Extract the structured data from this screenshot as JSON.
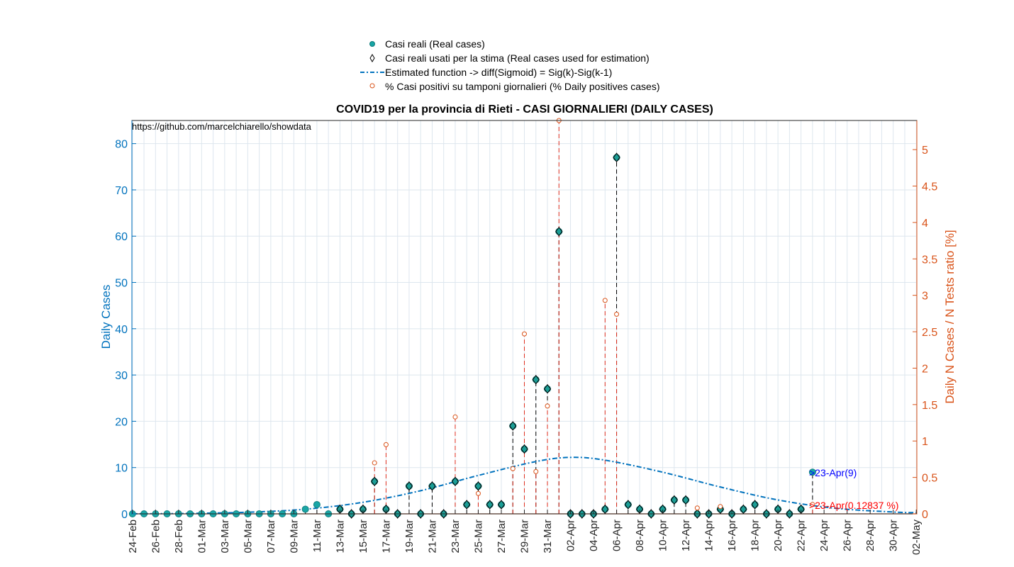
{
  "chart_data": {
    "type": "scatter",
    "title": "COVID19 per la provincia di Rieti - CASI GIORNALIERI (DAILY CASES)",
    "watermark": "https://github.com/marcelchiarello/showdata",
    "ylabel_left": "Daily Cases",
    "ylabel_right": "Daily N Cases / N Tests ratio [%]",
    "ylim_left": [
      0,
      85
    ],
    "ylim_right": [
      0,
      5.4
    ],
    "yticks_left": [
      "0",
      "10",
      "20",
      "30",
      "40",
      "50",
      "60",
      "70",
      "80"
    ],
    "yticks_right": [
      "0",
      "0.5",
      "1",
      "1.5",
      "2",
      "2.5",
      "3",
      "3.5",
      "4",
      "4.5",
      "5"
    ],
    "grid": true,
    "legend_position": "top-center",
    "x_start": "24-Feb",
    "x_end": "02-May",
    "x_tick_labels": [
      "24-Feb",
      "26-Feb",
      "28-Feb",
      "01-Mar",
      "03-Mar",
      "05-Mar",
      "07-Mar",
      "09-Mar",
      "11-Mar",
      "13-Mar",
      "15-Mar",
      "17-Mar",
      "19-Mar",
      "21-Mar",
      "23-Mar",
      "25-Mar",
      "27-Mar",
      "29-Mar",
      "31-Mar",
      "02-Apr",
      "04-Apr",
      "06-Apr",
      "08-Apr",
      "10-Apr",
      "12-Apr",
      "14-Apr",
      "16-Apr",
      "18-Apr",
      "20-Apr",
      "22-Apr",
      "24-Apr",
      "26-Apr",
      "28-Apr",
      "30-Apr",
      "02-May"
    ],
    "legend": [
      {
        "label": "Casi reali (Real cases)",
        "marker": "dot"
      },
      {
        "label": "Casi reali usati per la stima (Real cases used for estimation)",
        "marker": "diamond"
      },
      {
        "label": "Estimated function -> diff(Sigmoid) = Sig(k)-Sig(k-1)",
        "marker": "dashdot"
      },
      {
        "label": "% Casi positivi su tamponi giornalieri (% Daily positives cases)",
        "marker": "circle"
      }
    ],
    "series": [
      {
        "name": "Casi reali (Real cases)",
        "x": [
          "24-Feb",
          "25-Feb",
          "26-Feb",
          "27-Feb",
          "28-Feb",
          "29-Feb",
          "01-Mar",
          "02-Mar",
          "03-Mar",
          "04-Mar",
          "05-Mar",
          "06-Mar",
          "07-Mar",
          "08-Mar",
          "09-Mar",
          "10-Mar",
          "11-Mar",
          "12-Mar",
          "13-Mar",
          "14-Mar",
          "15-Mar",
          "16-Mar",
          "17-Mar",
          "18-Mar",
          "19-Mar",
          "20-Mar",
          "21-Mar",
          "22-Mar",
          "23-Mar",
          "24-Mar",
          "25-Mar",
          "26-Mar",
          "27-Mar",
          "28-Mar",
          "29-Mar",
          "30-Mar",
          "31-Mar",
          "01-Apr",
          "02-Apr",
          "03-Apr",
          "04-Apr",
          "05-Apr",
          "06-Apr",
          "07-Apr",
          "08-Apr",
          "09-Apr",
          "10-Apr",
          "11-Apr",
          "12-Apr",
          "13-Apr",
          "14-Apr",
          "15-Apr",
          "16-Apr",
          "17-Apr",
          "18-Apr",
          "19-Apr",
          "20-Apr",
          "21-Apr",
          "22-Apr",
          "23-Apr"
        ],
        "values": [
          0,
          0,
          0,
          0,
          0,
          0,
          0,
          0,
          0,
          0,
          0,
          0,
          0,
          0,
          0,
          1,
          2,
          0,
          1,
          0,
          1,
          7,
          1,
          0,
          6,
          0,
          6,
          0,
          7,
          2,
          6,
          2,
          2,
          19,
          14,
          29,
          27,
          61,
          0,
          0,
          0,
          1,
          77,
          2,
          1,
          0,
          1,
          3,
          3,
          0,
          0,
          1,
          0,
          1,
          2,
          0,
          1,
          0,
          1,
          9
        ]
      },
      {
        "name": "Casi reali usati per la stima (Real cases used for estimation)",
        "x": [
          "13-Mar",
          "14-Mar",
          "15-Mar",
          "16-Mar",
          "17-Mar",
          "18-Mar",
          "19-Mar",
          "20-Mar",
          "21-Mar",
          "22-Mar",
          "23-Mar",
          "24-Mar",
          "25-Mar",
          "26-Mar",
          "27-Mar",
          "28-Mar",
          "29-Mar",
          "30-Mar",
          "31-Mar",
          "01-Apr",
          "02-Apr",
          "03-Apr",
          "04-Apr",
          "05-Apr",
          "06-Apr",
          "07-Apr",
          "08-Apr",
          "09-Apr",
          "10-Apr",
          "11-Apr",
          "12-Apr",
          "13-Apr",
          "14-Apr",
          "15-Apr",
          "16-Apr",
          "17-Apr",
          "18-Apr",
          "19-Apr",
          "20-Apr",
          "21-Apr",
          "22-Apr"
        ],
        "values": [
          1,
          0,
          1,
          7,
          1,
          0,
          6,
          0,
          6,
          0,
          7,
          2,
          6,
          2,
          2,
          19,
          14,
          29,
          27,
          61,
          0,
          0,
          0,
          1,
          77,
          2,
          1,
          0,
          1,
          3,
          3,
          0,
          0,
          1,
          0,
          1,
          2,
          0,
          1,
          0,
          1
        ]
      },
      {
        "name": "Estimated function -> diff(Sigmoid) = Sig(k)-Sig(k-1)",
        "x": [
          "24-Feb",
          "29-Feb",
          "05-Mar",
          "10-Mar",
          "15-Mar",
          "20-Mar",
          "25-Mar",
          "30-Mar",
          "02-Apr",
          "05-Apr",
          "10-Apr",
          "15-Apr",
          "20-Apr",
          "25-Apr",
          "30-Apr",
          "02-May"
        ],
        "values": [
          0.02,
          0.1,
          0.35,
          1.0,
          2.5,
          5.0,
          8.3,
          11.3,
          12.2,
          11.6,
          9.0,
          5.8,
          3.0,
          1.2,
          0.4,
          0.25
        ]
      },
      {
        "name": "% Casi positivi su tamponi giornalieri (% Daily positives cases)",
        "x": [
          "16-Mar",
          "17-Mar",
          "23-Mar",
          "25-Mar",
          "28-Mar",
          "29-Mar",
          "30-Mar",
          "31-Mar",
          "01-Apr",
          "05-Apr",
          "06-Apr",
          "13-Apr",
          "15-Apr",
          "23-Apr"
        ],
        "values": [
          0.7,
          0.95,
          1.33,
          0.28,
          0.62,
          2.47,
          0.58,
          1.48,
          5.4,
          2.93,
          2.74,
          0.08,
          0.1,
          0.12837
        ]
      }
    ],
    "annotations": [
      {
        "text": ">23-Apr(9)",
        "color": "#0000ff"
      },
      {
        "text": ">23-Apr(0.12837 %)",
        "color": "#ff0000"
      }
    ]
  }
}
